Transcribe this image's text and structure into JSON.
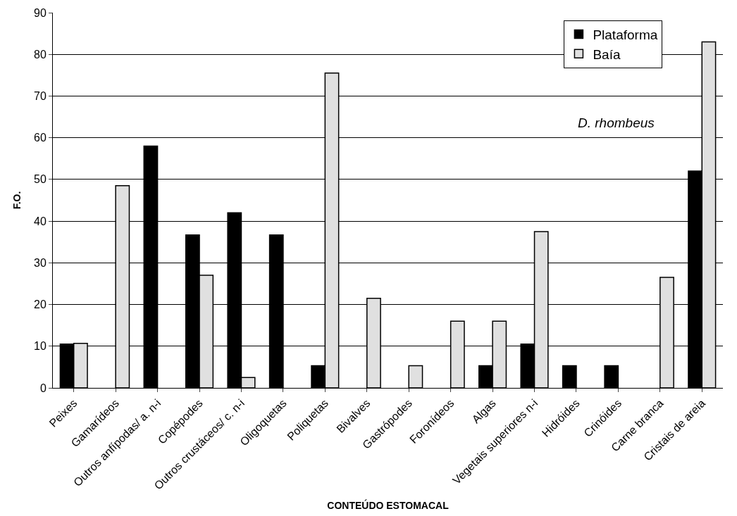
{
  "chart_data": {
    "type": "bar",
    "xlabel": "CONTEÚDO ESTOMACAL",
    "ylabel": "F.O.",
    "categories": [
      "Peixes",
      "Gamarídeos",
      "Outros anfípodas/ a. n-i",
      "Copépodes",
      "Outros crustáceos/ c. n-i",
      "Oligoquetas",
      "Poliquetas",
      "Bivalves",
      "Gastrópodes",
      "Foronídeos",
      "Algas",
      "Vegetais superiores n-i",
      "Hidróides",
      "Crinóides",
      "Carne branca",
      "Cristais de areia"
    ],
    "series": [
      {
        "name": "Plataforma",
        "color": "#000000",
        "values": [
          10.5,
          null,
          58,
          36.7,
          42,
          36.7,
          5.3,
          null,
          null,
          null,
          5.3,
          10.5,
          5.3,
          5.3,
          null,
          52
        ]
      },
      {
        "name": "Baía",
        "color": "#e0e0e0",
        "values": [
          10.7,
          48.5,
          null,
          27,
          2.5,
          null,
          75.5,
          21.5,
          5.3,
          16,
          16,
          37.5,
          null,
          null,
          26.5,
          83
        ]
      }
    ],
    "ylim": [
      0,
      90
    ],
    "yticks": [
      0,
      10,
      20,
      30,
      40,
      50,
      60,
      70,
      80,
      90
    ],
    "grid": "y",
    "legend": "top right",
    "annotations": [
      "D. rhombeus"
    ]
  }
}
